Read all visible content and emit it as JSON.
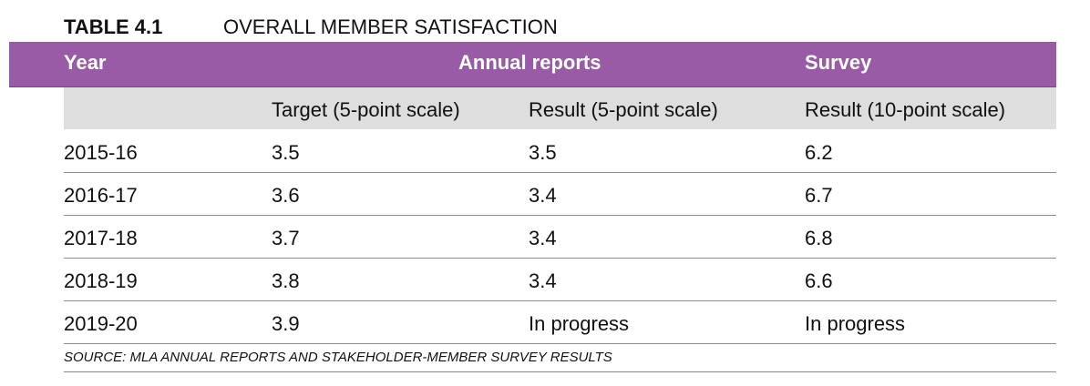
{
  "table": {
    "number": "TABLE 4.1",
    "title": "OVERALL MEMBER SATISFACTION",
    "header": {
      "year": "Year",
      "annual_reports": "Annual reports",
      "survey": "Survey"
    },
    "subheader": {
      "year": "",
      "target": "Target (5-point scale)",
      "result5": "Result (5-point scale)",
      "result10": "Result (10-point scale)"
    },
    "rows": [
      {
        "year": "2015-16",
        "target": "3.5",
        "result5": "3.5",
        "result10": "6.2"
      },
      {
        "year": "2016-17",
        "target": "3.6",
        "result5": "3.4",
        "result10": "6.7"
      },
      {
        "year": "2017-18",
        "target": "3.7",
        "result5": "3.4",
        "result10": "6.8"
      },
      {
        "year": "2018-19",
        "target": "3.8",
        "result5": "3.4",
        "result10": "6.6"
      },
      {
        "year": "2019-20",
        "target": "3.9",
        "result5": "In progress",
        "result10": "In progress"
      }
    ],
    "source": "SOURCE: MLA ANNUAL REPORTS AND STAKEHOLDER-MEMBER SURVEY RESULTS"
  },
  "colors": {
    "header_band": "#9a5ba6",
    "subheader_band": "#dedede",
    "rule": "#8c8c8c"
  }
}
